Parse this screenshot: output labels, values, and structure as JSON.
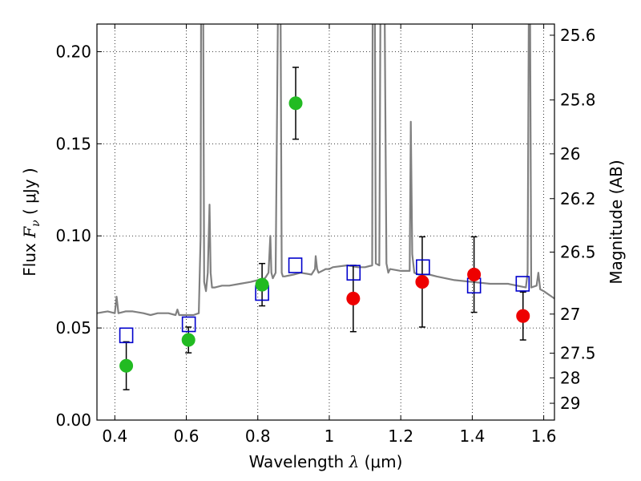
{
  "chart_data": {
    "type": "scatter",
    "xlabel": "Wavelength  λ (μm)",
    "ylabel": "Flux  Fν  ( μJy )",
    "ylabel_parts": {
      "prefix": "Flux  ",
      "symbol": "F",
      "subscript": "ν",
      "suffix": "  ( μJy )"
    },
    "xlabel_parts": {
      "prefix": "Wavelength  ",
      "symbol": "λ",
      "suffix": " (μm)"
    },
    "y2label": "Magnitude (AB)",
    "xlim": [
      0.35,
      1.63
    ],
    "ylim": [
      0.0,
      0.215
    ],
    "grid": true,
    "x_ticks": [
      {
        "value": 0.4,
        "label": "0.4"
      },
      {
        "value": 0.6,
        "label": "0.6"
      },
      {
        "value": 0.8,
        "label": "0.8"
      },
      {
        "value": 1.0,
        "label": "1"
      },
      {
        "value": 1.2,
        "label": "1.2"
      },
      {
        "value": 1.4,
        "label": "1.4"
      },
      {
        "value": 1.6,
        "label": "1.6"
      }
    ],
    "y_ticks": [
      {
        "value": 0.0,
        "label": "0.00"
      },
      {
        "value": 0.05,
        "label": "0.05"
      },
      {
        "value": 0.1,
        "label": "0.10"
      },
      {
        "value": 0.15,
        "label": "0.15"
      },
      {
        "value": 0.2,
        "label": "0.20"
      }
    ],
    "y2_ticks": [
      {
        "mag": 25.6,
        "label": "25.6"
      },
      {
        "mag": 25.8,
        "label": "25.8"
      },
      {
        "mag": 26.0,
        "label": "26"
      },
      {
        "mag": 26.2,
        "label": "26.2"
      },
      {
        "mag": 26.5,
        "label": "26.5"
      },
      {
        "mag": 27.0,
        "label": "27"
      },
      {
        "mag": 27.5,
        "label": "27.5"
      },
      {
        "mag": 28.0,
        "label": "28"
      },
      {
        "mag": 29.0,
        "label": "29"
      }
    ],
    "series": [
      {
        "kind": "line",
        "color": "#808080",
        "x": [
          0.35,
          0.38,
          0.4,
          0.405,
          0.41,
          0.43,
          0.45,
          0.48,
          0.5,
          0.52,
          0.55,
          0.57,
          0.575,
          0.58,
          0.6,
          0.62,
          0.635,
          0.64,
          0.642,
          0.646,
          0.65,
          0.655,
          0.66,
          0.665,
          0.668,
          0.672,
          0.68,
          0.7,
          0.72,
          0.75,
          0.78,
          0.8,
          0.82,
          0.83,
          0.835,
          0.838,
          0.842,
          0.85,
          0.86,
          0.862,
          0.867,
          0.87,
          0.875,
          0.9,
          0.92,
          0.95,
          0.96,
          0.962,
          0.966,
          0.97,
          0.99,
          1.0,
          1.01,
          1.05,
          1.08,
          1.1,
          1.12,
          1.122,
          1.126,
          1.13,
          1.14,
          1.145,
          1.152,
          1.16,
          1.165,
          1.17,
          1.2,
          1.225,
          1.228,
          1.232,
          1.238,
          1.25,
          1.28,
          1.3,
          1.35,
          1.4,
          1.45,
          1.5,
          1.55,
          1.555,
          1.56,
          1.565,
          1.58,
          1.585,
          1.59,
          1.6,
          1.63
        ],
        "y": [
          0.058,
          0.059,
          0.058,
          0.067,
          0.058,
          0.059,
          0.059,
          0.058,
          0.057,
          0.058,
          0.058,
          0.057,
          0.06,
          0.057,
          0.057,
          0.057,
          0.058,
          0.1,
          0.3,
          0.3,
          0.075,
          0.07,
          0.08,
          0.117,
          0.08,
          0.072,
          0.072,
          0.073,
          0.073,
          0.074,
          0.075,
          0.076,
          0.077,
          0.08,
          0.1,
          0.08,
          0.077,
          0.08,
          0.3,
          0.3,
          0.08,
          0.078,
          0.078,
          0.079,
          0.08,
          0.079,
          0.082,
          0.089,
          0.082,
          0.08,
          0.082,
          0.082,
          0.083,
          0.084,
          0.083,
          0.083,
          0.084,
          0.3,
          0.3,
          0.085,
          0.084,
          0.3,
          0.3,
          0.085,
          0.08,
          0.082,
          0.081,
          0.081,
          0.162,
          0.09,
          0.08,
          0.079,
          0.079,
          0.078,
          0.076,
          0.075,
          0.074,
          0.074,
          0.072,
          0.08,
          0.3,
          0.072,
          0.073,
          0.08,
          0.071,
          0.07,
          0.066
        ]
      },
      {
        "kind": "points",
        "marker": "square",
        "color": "#0000cc",
        "x": [
          0.432,
          0.607,
          0.812,
          0.905,
          1.068,
          1.262,
          1.405,
          1.541
        ],
        "y": [
          0.046,
          0.052,
          0.069,
          0.084,
          0.08,
          0.083,
          0.073,
          0.074
        ]
      },
      {
        "kind": "points",
        "marker": "circle",
        "color": "#22bb22",
        "x": [
          0.432,
          0.606,
          0.812,
          0.906
        ],
        "y": [
          0.0295,
          0.0435,
          0.0735,
          0.172
        ],
        "err": [
          0.013,
          0.007,
          0.0115,
          0.0195
        ]
      },
      {
        "kind": "points",
        "marker": "circle",
        "color": "#ee0000",
        "x": [
          1.067,
          1.26,
          1.405,
          1.542
        ],
        "y": [
          0.066,
          0.075,
          0.079,
          0.0565
        ],
        "err": [
          0.018,
          0.0245,
          0.0205,
          0.013
        ]
      }
    ]
  }
}
